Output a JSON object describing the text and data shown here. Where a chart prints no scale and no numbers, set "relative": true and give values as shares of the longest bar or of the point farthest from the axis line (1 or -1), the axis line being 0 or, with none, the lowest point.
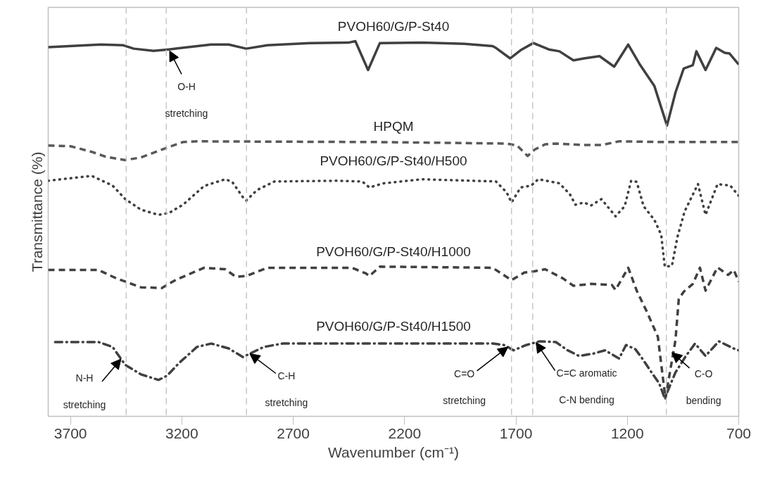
{
  "chart_data": {
    "type": "line",
    "relative": true,
    "xlabel": "Wavenumber (cm⁻¹)",
    "ylabel": "Transmittance (%)",
    "xlim": [
      3800,
      700
    ],
    "xticks": [
      3700,
      3200,
      2700,
      2200,
      1700,
      1200,
      700
    ],
    "grid": false,
    "marker": "none",
    "series": [
      {
        "name": "PVOH60/G/P-St40",
        "color": "#404040",
        "line_style": "solid",
        "x": [
          3800,
          3564,
          3463,
          3416,
          3327,
          3258,
          3068,
          2990,
          2911,
          2816,
          2626,
          2453,
          2421,
          2364,
          2311,
          2121,
          1932,
          1805,
          1790,
          1726,
          1679,
          1622,
          1553,
          1505,
          1442,
          1395,
          1325,
          1259,
          1196,
          1142,
          1079,
          1022,
          984,
          947,
          906,
          890,
          849,
          801,
          763,
          741,
          700
        ],
        "values": [
          0.984,
          0.991,
          0.989,
          0.98,
          0.974,
          0.978,
          0.991,
          0.991,
          0.98,
          0.989,
          0.995,
          0.996,
          1.0,
          0.923,
          0.995,
          0.996,
          0.993,
          0.987,
          0.982,
          0.954,
          0.976,
          0.995,
          0.978,
          0.973,
          0.949,
          0.954,
          0.96,
          0.932,
          0.991,
          0.936,
          0.881,
          0.775,
          0.863,
          0.927,
          0.936,
          0.973,
          0.923,
          0.982,
          0.969,
          0.967,
          0.938
        ]
      },
      {
        "name": "HPQM",
        "color": "#595959",
        "line_style": "dashed",
        "x": [
          3800,
          3700,
          3605,
          3542,
          3454,
          3384,
          3290,
          3195,
          3132,
          2311,
          1742,
          1695,
          1648,
          1616,
          1569,
          1521,
          1395,
          1316,
          1237,
          1016,
          700
        ],
        "values": [
          0.722,
          0.72,
          0.705,
          0.692,
          0.683,
          0.69,
          0.711,
          0.731,
          0.733,
          0.731,
          0.727,
          0.722,
          0.694,
          0.711,
          0.725,
          0.727,
          0.723,
          0.723,
          0.733,
          0.731,
          0.731
        ]
      },
      {
        "name": "PVOH60/G/P-St40/H500",
        "color": "#404040",
        "line_style": "dotted",
        "x": [
          3800,
          3605,
          3511,
          3454,
          3384,
          3305,
          3258,
          3195,
          3100,
          3005,
          2974,
          2926,
          2911,
          2863,
          2784,
          2500,
          2390,
          2358,
          2295,
          2121,
          1790,
          1742,
          1720,
          1679,
          1632,
          1600,
          1505,
          1458,
          1433,
          1395,
          1363,
          1316,
          1253,
          1212,
          1183,
          1158,
          1127,
          1079,
          1048,
          1032,
          1000,
          975,
          943,
          883,
          849,
          795,
          738,
          700
        ],
        "values": [
          0.628,
          0.641,
          0.615,
          0.579,
          0.551,
          0.537,
          0.542,
          0.564,
          0.614,
          0.632,
          0.625,
          0.584,
          0.575,
          0.603,
          0.626,
          0.628,
          0.626,
          0.61,
          0.621,
          0.632,
          0.626,
          0.597,
          0.57,
          0.61,
          0.615,
          0.632,
          0.621,
          0.592,
          0.564,
          0.57,
          0.562,
          0.579,
          0.533,
          0.56,
          0.628,
          0.625,
          0.56,
          0.524,
          0.484,
          0.399,
          0.401,
          0.478,
          0.546,
          0.619,
          0.537,
          0.619,
          0.615,
          0.588
        ]
      },
      {
        "name": "PVOH60/G/P-St40/H1000",
        "color": "#404040",
        "line_style": "dashed",
        "x": [
          3800,
          3574,
          3495,
          3384,
          3290,
          3226,
          3100,
          3005,
          2958,
          2911,
          2816,
          2437,
          2374,
          2358,
          2311,
          1805,
          1720,
          1663,
          1622,
          1569,
          1490,
          1442,
          1363,
          1269,
          1253,
          1196,
          1158,
          1111,
          1063,
          1029,
          984,
          969,
          947,
          906,
          874,
          849,
          795,
          748,
          722,
          700
        ],
        "values": [
          0.39,
          0.39,
          0.368,
          0.344,
          0.342,
          0.364,
          0.396,
          0.392,
          0.372,
          0.374,
          0.396,
          0.396,
          0.381,
          0.374,
          0.399,
          0.396,
          0.363,
          0.383,
          0.386,
          0.392,
          0.368,
          0.348,
          0.353,
          0.35,
          0.337,
          0.396,
          0.335,
          0.277,
          0.212,
          0.048,
          0.203,
          0.313,
          0.332,
          0.353,
          0.396,
          0.335,
          0.397,
          0.377,
          0.39,
          0.359
        ]
      },
      {
        "name": "PVOH60/G/P-St40/H1500",
        "color": "#404040",
        "line_style": "dashdot",
        "x": [
          3769,
          3574,
          3511,
          3479,
          3454,
          3384,
          3305,
          3267,
          3211,
          3132,
          3068,
          2990,
          2926,
          2832,
          2747,
          1805,
          1752,
          1711,
          1654,
          1594,
          1521,
          1468,
          1417,
          1354,
          1300,
          1237,
          1206,
          1164,
          1133,
          1089,
          1057,
          1032,
          984,
          937,
          896,
          849,
          789,
          716,
          700
        ],
        "values": [
          0.198,
          0.198,
          0.185,
          0.158,
          0.137,
          0.112,
          0.097,
          0.108,
          0.143,
          0.185,
          0.194,
          0.181,
          0.158,
          0.185,
          0.194,
          0.194,
          0.19,
          0.176,
          0.19,
          0.2,
          0.198,
          0.176,
          0.161,
          0.167,
          0.176,
          0.154,
          0.19,
          0.179,
          0.154,
          0.115,
          0.088,
          0.048,
          0.117,
          0.161,
          0.194,
          0.161,
          0.2,
          0.179,
          0.176
        ]
      }
    ],
    "ref_lines": [
      {
        "axis": "x",
        "value": 3450,
        "color": "#bfbfbf",
        "line_style": "dashed"
      },
      {
        "axis": "x",
        "value": 3270,
        "color": "#bfbfbf",
        "line_style": "dashed"
      },
      {
        "axis": "x",
        "value": 2910,
        "color": "#bfbfbf",
        "line_style": "dashed"
      },
      {
        "axis": "x",
        "value": 1720,
        "color": "#bfbfbf",
        "line_style": "dashed"
      },
      {
        "axis": "x",
        "value": 1625,
        "color": "#bfbfbf",
        "line_style": "dashed"
      },
      {
        "axis": "x",
        "value": 1025,
        "color": "#bfbfbf",
        "line_style": "dashed"
      }
    ],
    "annotations": [
      {
        "text": "O-H",
        "x": 3255,
        "y": 0.974
      },
      "stretching",
      {
        "text": "N-H",
        "x": 3473,
        "y": 0.153
      },
      "stretching",
      {
        "text": "C-H",
        "x": 2895,
        "y": 0.167
      },
      "stretching",
      {
        "text": "C=O",
        "x": 1736,
        "y": 0.185
      },
      "stretching",
      {
        "text": "C=C aromatic",
        "x": 1610,
        "y": 0.197
      },
      "C-N bending",
      {
        "text": "C-O",
        "x": 1000,
        "y": 0.17
      },
      "bending"
    ]
  }
}
